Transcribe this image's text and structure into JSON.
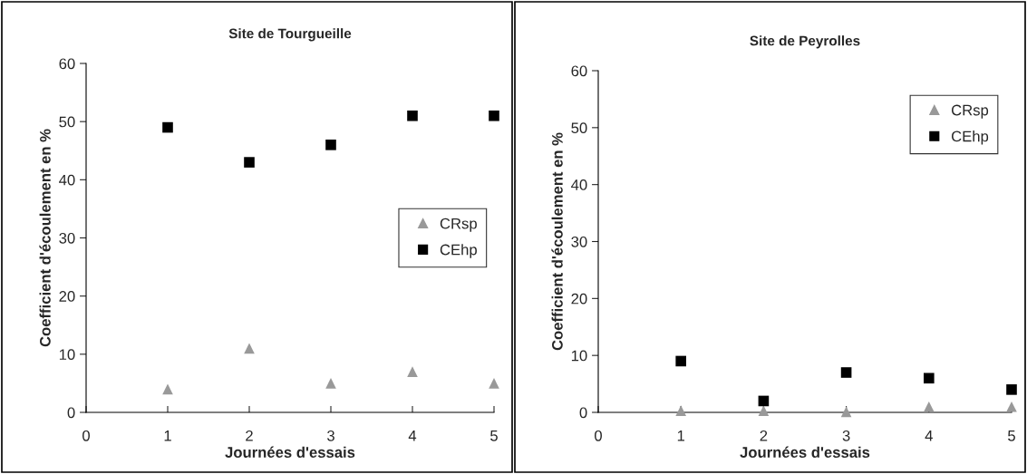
{
  "chart_data": [
    {
      "type": "scatter",
      "title": "Site de Tourgueille",
      "xlabel": "Journées d'essais",
      "ylabel": "Coefficient d'écoulement en %",
      "x": [
        1,
        2,
        3,
        4,
        5
      ],
      "xlim": [
        0,
        5
      ],
      "xticks": [
        0,
        1,
        2,
        3,
        4,
        5
      ],
      "ylim": [
        0,
        60
      ],
      "yticks": [
        0,
        10,
        20,
        30,
        40,
        50,
        60
      ],
      "grid": false,
      "legend": "right",
      "series": [
        {
          "name": "CRsp",
          "color": "#999999",
          "marker": "triangle",
          "values": [
            4,
            11,
            5,
            7,
            5
          ]
        },
        {
          "name": "CEhp",
          "color": "#000000",
          "marker": "square",
          "values": [
            49,
            43,
            46,
            51,
            51
          ]
        }
      ]
    },
    {
      "type": "scatter",
      "title": "Site de Peyrolles",
      "xlabel": "Journées d'essais",
      "ylabel": "Coefficient d'écoulement en %",
      "x": [
        1,
        2,
        3,
        4,
        5
      ],
      "xlim": [
        0,
        5
      ],
      "xticks": [
        0,
        1,
        2,
        3,
        4,
        5
      ],
      "ylim": [
        0,
        60
      ],
      "yticks": [
        0,
        10,
        20,
        30,
        40,
        50,
        60
      ],
      "grid": false,
      "legend": "top right",
      "series": [
        {
          "name": "CRsp",
          "color": "#999999",
          "marker": "triangle",
          "values": [
            0.3,
            0.3,
            0.1,
            1,
            1
          ]
        },
        {
          "name": "CEhp",
          "color": "#000000",
          "marker": "square",
          "values": [
            9,
            2,
            7,
            6,
            4
          ]
        }
      ]
    }
  ]
}
